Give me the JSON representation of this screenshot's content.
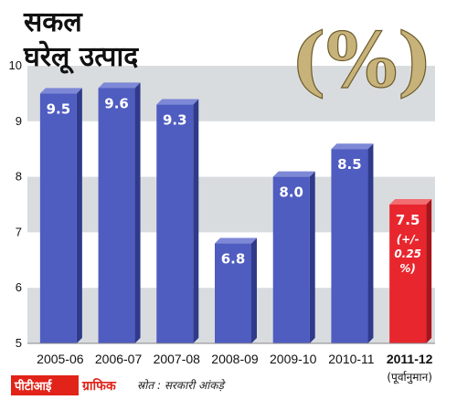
{
  "title_line1": "सकल",
  "title_line2": "घरेलू उत्पाद",
  "percent_symbol": "(%)",
  "footer": {
    "brand": "पीटीआई",
    "brand_suffix": "ग्राफिक",
    "source": "स्रोत : सरकारी आंकड़े"
  },
  "colors": {
    "bar_blue": "#4f5cc0",
    "bar_red": "#e8262e",
    "band_gray": "#d9dcdf",
    "brand_red": "#e2231a"
  },
  "chart_data": {
    "type": "bar",
    "categories": [
      "2005-06",
      "2006-07",
      "2007-08",
      "2008-09",
      "2009-10",
      "2010-11",
      "2011-12"
    ],
    "values": [
      9.5,
      9.6,
      9.3,
      6.8,
      8.0,
      8.5,
      7.5
    ],
    "value_labels": [
      "9.5",
      "9.6",
      "9.3",
      "6.8",
      "8.0",
      "8.5",
      "7.5"
    ],
    "highlight_index": 6,
    "highlight_note": "(+/- 0.25 %)",
    "highlight_sublabel": "(पूर्वानुमान)",
    "ylim": [
      5,
      10
    ],
    "yticks": [
      5,
      6,
      7,
      8,
      9,
      10
    ],
    "grid": "alternating horizontal bands",
    "xlabel": "",
    "ylabel": ""
  }
}
